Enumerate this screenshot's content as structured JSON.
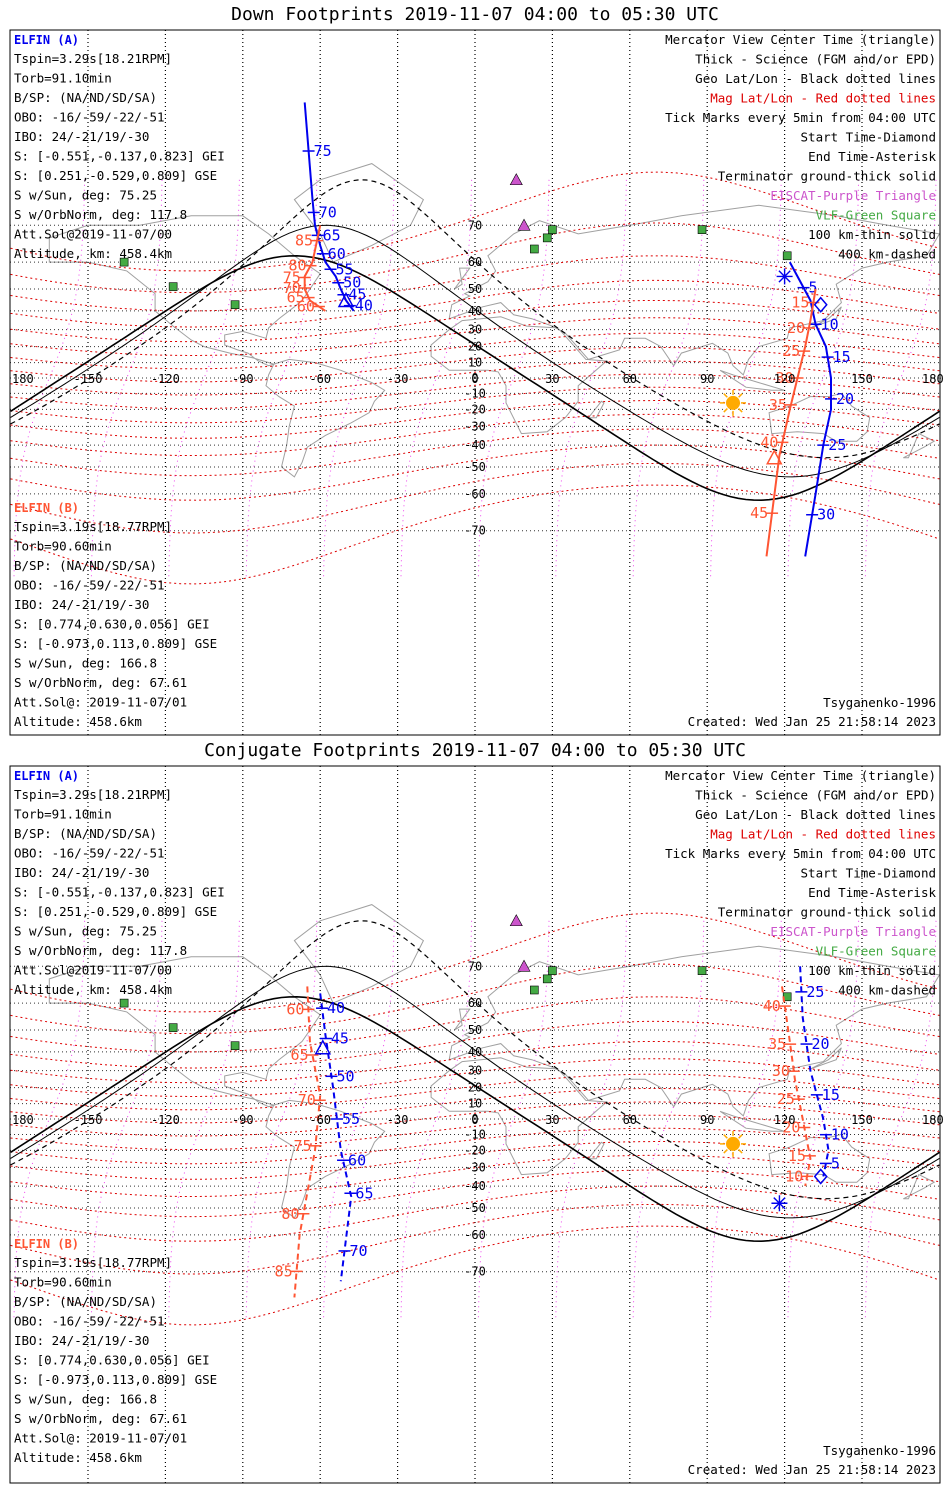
{
  "colors": {
    "elfin_a": "#0000ee",
    "elfin_b": "#ff5533",
    "mag_grid": "#dd0000",
    "geo_grid": "#000000",
    "geo_grid_pink": "#ee44ee",
    "land": "#a0a0a0",
    "eiscat": "#cc55cc",
    "vlf": "#44aa44",
    "sun": "#ffaa00"
  },
  "panels": [
    {
      "title": "Down Footprints 2019-11-07 04:00 to 05:30 UTC",
      "elfin_a": {
        "label": "ELFIN (A)",
        "lines": [
          "Tspin=3.29s[18.21RPM]",
          "Torb=91.10min",
          "B/SP: (NA/ND/SD/SA)",
          "OBO: -16/-59/-22/-51",
          "IBO: 24/-21/19/-30",
          "S: [-0.551,-0.137,0.823] GEI",
          "S: [0.251,-0.529,0.809] GSE",
          "S w/Sun, deg: 75.25",
          "S w/OrbNorm, deg: 117.8",
          "Att.Sol@2019-11-07/00",
          "Altitude, km: 458.4km"
        ]
      },
      "elfin_b": {
        "label": "ELFIN (B)",
        "lines": [
          "Tspin=3.19s[18.77RPM]",
          "Torb=90.60min",
          "B/SP: (NA/ND/SD/SA)",
          "OBO: -16/-59/-22/-51",
          "IBO: 24/-21/19/-30",
          "S: [0.774,0.630,0.056] GEI",
          "S: [-0.973,0.113,0.809] GSE",
          "S w/Sun, deg: 166.8",
          "S w/OrbNorm, deg: 67.61",
          "Att.Sol@: 2019-11-07/01",
          "Altitude: 458.6km"
        ]
      },
      "legend": [
        {
          "text": "Mercator View Center Time (triangle)",
          "color": "#000000"
        },
        {
          "text": "Thick - Science (FGM and/or EPD)",
          "color": "#000000"
        },
        {
          "text": "Geo Lat/Lon - Black dotted lines",
          "color": "#000000"
        },
        {
          "text": "Mag Lat/Lon - Red dotted lines",
          "color": "#dd0000"
        },
        {
          "text": "Tick Marks every 5min from 04:00 UTC",
          "color": "#000000"
        },
        {
          "text": "Start Time-Diamond",
          "color": "#000000"
        },
        {
          "text": "End Time-Asterisk",
          "color": "#000000"
        },
        {
          "text": "Terminator ground-thick solid",
          "color": "#000000"
        },
        {
          "text": "EISCAT-Purple Triangle",
          "color": "#cc55cc"
        },
        {
          "text": "VLF-Green Square",
          "color": "#44aa44"
        },
        {
          "text": "100 km-thin solid",
          "color": "#000000"
        },
        {
          "text": "400 km-dashed",
          "color": "#000000"
        }
      ],
      "model": "Tsyganenko-1996",
      "created": "Created: Wed Jan 25 21:58:14 2023"
    },
    {
      "title": "Conjugate Footprints 2019-11-07 04:00 to 05:30 UTC",
      "elfin_a": {
        "label": "ELFIN (A)",
        "lines": [
          "Tspin=3.29s[18.21RPM]",
          "Torb=91.10min",
          "B/SP: (NA/ND/SD/SA)",
          "OBO: -16/-59/-22/-51",
          "IBO: 24/-21/19/-30",
          "S: [-0.551,-0.137,0.823] GEI",
          "S: [0.251,-0.529,0.809] GSE",
          "S w/Sun, deg: 75.25",
          "S w/OrbNorm, deg: 117.8",
          "Att.Sol@2019-11-07/00",
          "Altitude, km: 458.4km"
        ]
      },
      "elfin_b": {
        "label": "ELFIN (B)",
        "lines": [
          "Tspin=3.19s[18.77RPM]",
          "Torb=90.60min",
          "B/SP: (NA/ND/SD/SA)",
          "OBO: -16/-59/-22/-51",
          "IBO: 24/-21/19/-30",
          "S: [0.774,0.630,0.056] GEI",
          "S: [-0.973,0.113,0.809] GSE",
          "S w/Sun, deg: 166.8",
          "S w/OrbNorm, deg: 67.61",
          "Att.Sol@: 2019-11-07/01",
          "Altitude: 458.6km"
        ]
      },
      "legend": [
        {
          "text": "Mercator View Center Time (triangle)",
          "color": "#000000"
        },
        {
          "text": "Thick - Science (FGM and/or EPD)",
          "color": "#000000"
        },
        {
          "text": "Geo Lat/Lon - Black dotted lines",
          "color": "#000000"
        },
        {
          "text": "Mag Lat/Lon - Red dotted lines",
          "color": "#dd0000"
        },
        {
          "text": "Tick Marks every 5min from 04:00 UTC",
          "color": "#000000"
        },
        {
          "text": "Start Time-Diamond",
          "color": "#000000"
        },
        {
          "text": "End Time-Asterisk",
          "color": "#000000"
        },
        {
          "text": "Terminator ground-thick solid",
          "color": "#000000"
        },
        {
          "text": "EISCAT-Purple Triangle",
          "color": "#cc55cc"
        },
        {
          "text": "VLF-Green Square",
          "color": "#44aa44"
        },
        {
          "text": "100 km-thin solid",
          "color": "#000000"
        },
        {
          "text": "400 km-dashed",
          "color": "#000000"
        }
      ],
      "model": "Tsyganenko-1996",
      "created": "Created: Wed Jan 25 21:58:14 2023"
    }
  ],
  "lon_labels": [
    "180",
    "-150",
    "-120",
    "-90",
    "-60",
    "-30",
    "0",
    "30",
    "60",
    "90",
    "120",
    "150",
    "180"
  ],
  "lat_labels": [
    "70",
    "60",
    "50",
    "40",
    "30",
    "20",
    "10",
    "0",
    "-10",
    "-20",
    "-30",
    "-40",
    "-50",
    "-60",
    "-70"
  ],
  "chart_data": [
    {
      "type": "map",
      "title": "Down Footprints 2019-11-07 04:00 to 05:30 UTC",
      "xlim": [
        -180,
        180
      ],
      "series": [
        {
          "name": "ELFIN (A)",
          "lonlat": [
            [
              -66,
              85
            ],
            [
              -63,
              75
            ],
            [
              -62,
              70
            ],
            [
              -60,
              65
            ],
            [
              -58,
              60
            ],
            [
              -54,
              55
            ],
            [
              -52,
              50
            ],
            [
              -50,
              45
            ],
            [
              -47,
              40
            ]
          ],
          "tick_labels": [
            "75",
            "70",
            "65",
            "60",
            "55",
            "50",
            "45",
            "40"
          ]
        },
        {
          "name": "ELFIN (B)",
          "lonlat": [
            [
              -60,
              70
            ],
            [
              -63,
              60
            ],
            [
              -66,
              55
            ],
            [
              -66,
              50
            ],
            [
              -64,
              45
            ],
            [
              -58,
              40
            ]
          ],
          "tick_labels": [
            "85",
            "80",
            "75",
            "70",
            "65",
            "60"
          ]
        },
        {
          "name": "ELFIN (A)",
          "lonlat": [
            [
              122,
              60
            ],
            [
              130,
              45
            ],
            [
              132,
              33
            ],
            [
              136,
              20
            ],
            [
              138,
              0
            ],
            [
              138,
              -20
            ],
            [
              135,
              -40
            ],
            [
              132,
              -60
            ],
            [
              128,
              -75
            ]
          ],
          "tick_labels": [
            "5",
            "10",
            "15",
            "20",
            "25",
            "30"
          ]
        },
        {
          "name": "ELFIN (B)",
          "lonlat": [
            [
              132,
              50
            ],
            [
              130,
              35
            ],
            [
              128,
              20
            ],
            [
              125,
              0
            ],
            [
              122,
              -20
            ],
            [
              118,
              -45
            ],
            [
              113,
              -75
            ]
          ],
          "tick_labels": [
            "15",
            "20",
            "25",
            "30",
            "35",
            "40",
            "45"
          ]
        }
      ],
      "sun": {
        "lon": 100,
        "lat": -16
      }
    },
    {
      "type": "map",
      "title": "Conjugate Footprints 2019-11-07 04:00 to 05:30 UTC",
      "xlim": [
        -180,
        180
      ],
      "series": [
        {
          "name": "ELFIN (A)",
          "tick_labels": [
            "40",
            "45",
            "50",
            "55",
            "60",
            "65",
            "70"
          ]
        },
        {
          "name": "ELFIN (B)",
          "tick_labels": [
            "60",
            "65",
            "70",
            "75",
            "80",
            "85"
          ]
        },
        {
          "name": "ELFIN (A)",
          "tick_labels": [
            "25",
            "20",
            "15",
            "10",
            "5"
          ]
        },
        {
          "name": "ELFIN (B)",
          "tick_labels": [
            "40",
            "35",
            "30",
            "25",
            "20",
            "15",
            "10"
          ]
        }
      ],
      "sun": {
        "lon": 100,
        "lat": -16
      }
    }
  ]
}
